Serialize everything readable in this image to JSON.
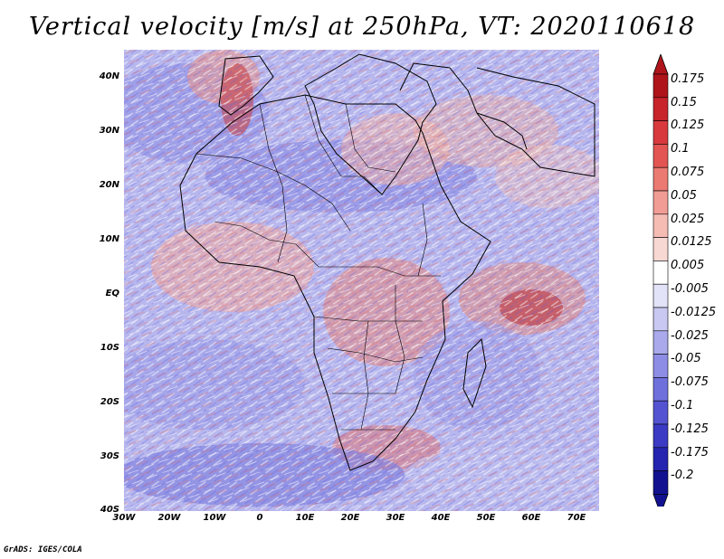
{
  "title": "Vertical velocity [m/s] at 250hPa, VT: 2020110618",
  "map": {
    "lon_range": [
      -30,
      75
    ],
    "lat_range": [
      -40,
      45
    ],
    "lat_labels": [
      "40N",
      "30N",
      "20N",
      "10N",
      "EQ",
      "10S",
      "20S",
      "30S",
      "40S"
    ],
    "lon_labels": [
      "30W",
      "20W",
      "10W",
      "0",
      "10E",
      "20E",
      "30E",
      "40E",
      "50E",
      "60E",
      "70E"
    ]
  },
  "colorbar": {
    "labels": [
      "0.175",
      "0.15",
      "0.125",
      "0.1",
      "0.075",
      "0.05",
      "0.025",
      "0.0125",
      "0.005",
      "-0.005",
      "-0.0125",
      "-0.025",
      "-0.05",
      "-0.075",
      "-0.1",
      "-0.125",
      "-0.175",
      "-0.2"
    ],
    "colors": [
      "#b0141b",
      "#c8242c",
      "#d8393d",
      "#e35552",
      "#eb7a73",
      "#f19c94",
      "#f5bcb4",
      "#f8d8d2",
      "#ffffff",
      "#e2e2f8",
      "#c8c8f2",
      "#a9a9ec",
      "#8d8de6",
      "#7070dd",
      "#5454d2",
      "#3a3ac4",
      "#2424b0",
      "#121290"
    ]
  },
  "credit": "GrADS: IGES/COLA"
}
